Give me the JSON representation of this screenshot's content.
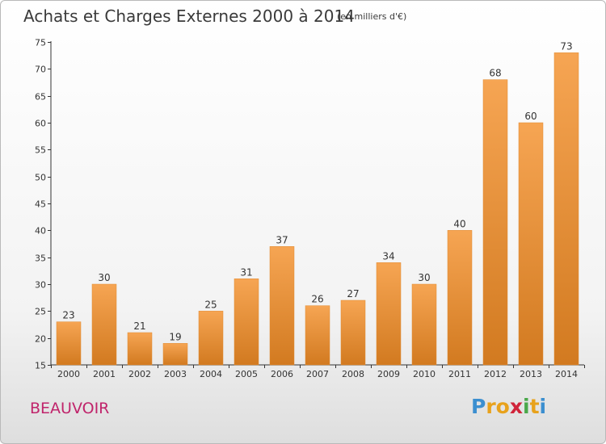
{
  "header": {
    "title": "Achats et Charges Externes 2000 à 2014",
    "subtitle": "(en milliers d'€)"
  },
  "footer": {
    "place": "BEAUVOIR",
    "logo_letters": [
      "P",
      "r",
      "o",
      "x",
      "i",
      "t",
      "i"
    ]
  },
  "colors": {
    "bar_top": "#f6a553",
    "bar_bottom": "#d27a20",
    "place": "#c0246b"
  },
  "chart_data": {
    "type": "bar",
    "title": "Achats et Charges Externes 2000 à 2014",
    "subtitle": "(en milliers d'€)",
    "xlabel": "",
    "ylabel": "",
    "categories": [
      "2000",
      "2001",
      "2002",
      "2003",
      "2004",
      "2005",
      "2006",
      "2007",
      "2008",
      "2009",
      "2010",
      "2011",
      "2012",
      "2013",
      "2014"
    ],
    "values": [
      23,
      30,
      21,
      19,
      25,
      31,
      37,
      26,
      27,
      34,
      30,
      40,
      68,
      60,
      73
    ],
    "ylim": [
      15,
      75
    ],
    "yticks": [
      15,
      20,
      25,
      30,
      35,
      40,
      45,
      50,
      55,
      60,
      65,
      70,
      75
    ],
    "grid": false,
    "legend": "none"
  }
}
